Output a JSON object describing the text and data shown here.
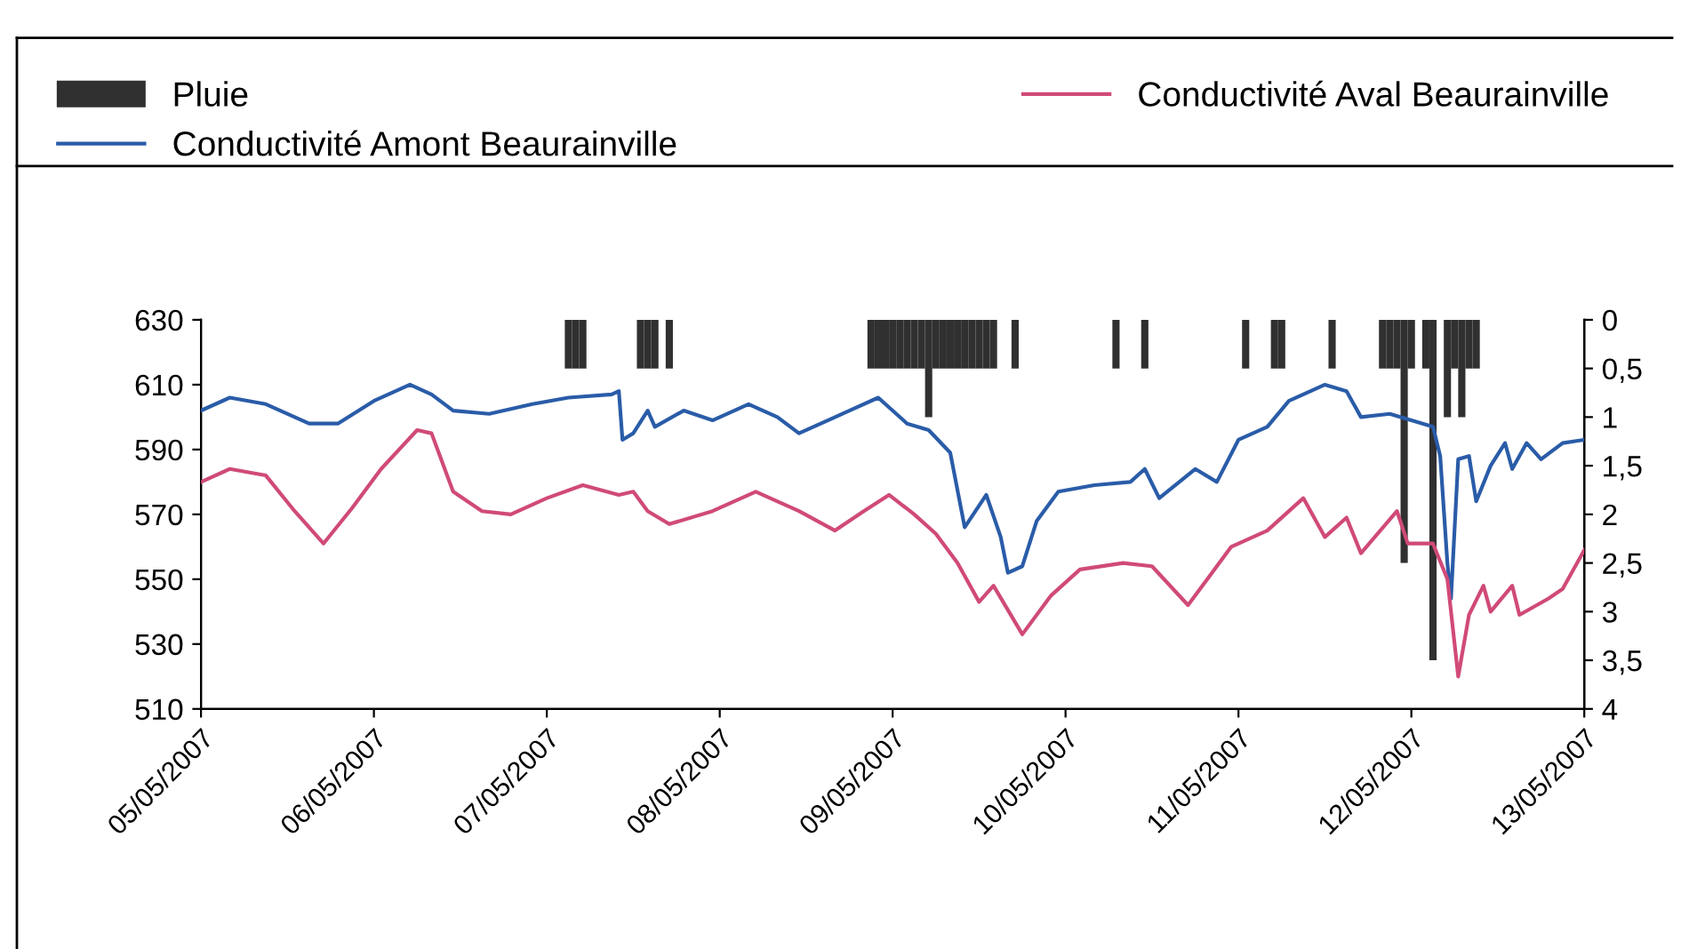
{
  "chart_data": {
    "type": "line",
    "legend": "top",
    "grid": false,
    "xlim": [
      "2007-05-05",
      "2007-05-13"
    ],
    "xticks": [
      {
        "value": "2007-05-05",
        "label": "05/05/2007"
      },
      {
        "value": "2007-05-06",
        "label": "06/05/2007"
      },
      {
        "value": "2007-05-07",
        "label": "07/05/2007"
      },
      {
        "value": "2007-05-08",
        "label": "08/05/2007"
      },
      {
        "value": "2007-05-09",
        "label": "09/05/2007"
      },
      {
        "value": "2007-05-10",
        "label": "10/05/2007"
      },
      {
        "value": "2007-05-11",
        "label": "11/05/2007"
      },
      {
        "value": "2007-05-12",
        "label": "12/05/2007"
      },
      {
        "value": "2007-05-13",
        "label": "13/05/2007"
      }
    ],
    "ylim": [
      510,
      630
    ],
    "yticks": [
      510,
      530,
      550,
      570,
      590,
      610,
      630
    ],
    "y2lim": [
      4,
      0
    ],
    "y2ticks": [
      0,
      {
        "value": 0.5,
        "label": "0,5"
      },
      1,
      {
        "value": 1.5,
        "label": "1,5"
      },
      2,
      {
        "value": 2.5,
        "label": "2,5"
      },
      3,
      {
        "value": 3.5,
        "label": "3,5"
      },
      4
    ],
    "series": [
      {
        "name": "Pluie",
        "type": "bar",
        "axis": "y2",
        "color": "#303030",
        "x": [
          "2007-05-07T03:00",
          "2007-05-07T04:00",
          "2007-05-07T05:00",
          "2007-05-07T13:00",
          "2007-05-07T14:00",
          "2007-05-07T15:00",
          "2007-05-07T17:00",
          "2007-05-08T21:00",
          "2007-05-08T22:00",
          "2007-05-08T23:00",
          "2007-05-09T00:00",
          "2007-05-09T01:00",
          "2007-05-09T02:00",
          "2007-05-09T03:00",
          "2007-05-09T04:00",
          "2007-05-09T05:00",
          "2007-05-09T06:00",
          "2007-05-09T07:00",
          "2007-05-09T08:00",
          "2007-05-09T09:00",
          "2007-05-09T10:00",
          "2007-05-09T11:00",
          "2007-05-09T12:00",
          "2007-05-09T13:00",
          "2007-05-09T14:00",
          "2007-05-09T17:00",
          "2007-05-10T07:00",
          "2007-05-10T11:00",
          "2007-05-11T01:00",
          "2007-05-11T05:00",
          "2007-05-11T06:00",
          "2007-05-11T13:00",
          "2007-05-11T20:00",
          "2007-05-11T21:00",
          "2007-05-11T22:00",
          "2007-05-11T23:00",
          "2007-05-12T00:00",
          "2007-05-12T02:00",
          "2007-05-12T03:00",
          "2007-05-12T05:00",
          "2007-05-12T06:00",
          "2007-05-12T07:00",
          "2007-05-12T08:00",
          "2007-05-12T09:00"
        ],
        "values": [
          0.5,
          0.5,
          0.5,
          0.5,
          0.5,
          0.5,
          0.5,
          0.5,
          0.5,
          0.5,
          0.5,
          0.5,
          0.5,
          0.5,
          0.5,
          1,
          0.5,
          0.5,
          0.5,
          0.5,
          0.5,
          0.5,
          0.5,
          0.5,
          0.5,
          0.5,
          0.5,
          0.5,
          0.5,
          0.5,
          0.5,
          0.5,
          0.5,
          0.5,
          0.5,
          2.5,
          0.5,
          0.5,
          3.5,
          1,
          0.5,
          1,
          0.5,
          0.5
        ]
      },
      {
        "name": "Conductivité Amont Beaurainville",
        "color": "#2a5ca8",
        "x": [
          "2007-05-05T00:00",
          "2007-05-05T04:00",
          "2007-05-05T09:00",
          "2007-05-05T15:00",
          "2007-05-05T19:00",
          "2007-05-06T00:00",
          "2007-05-06T05:00",
          "2007-05-06T08:00",
          "2007-05-06T11:00",
          "2007-05-06T16:00",
          "2007-05-06T22:00",
          "2007-05-07T03:00",
          "2007-05-07T09:00",
          "2007-05-07T10:00",
          "2007-05-07T10:30",
          "2007-05-07T12:00",
          "2007-05-07T14:00",
          "2007-05-07T15:00",
          "2007-05-07T19:00",
          "2007-05-07T23:00",
          "2007-05-08T04:00",
          "2007-05-08T08:00",
          "2007-05-08T11:00",
          "2007-05-08T15:00",
          "2007-05-08T18:00",
          "2007-05-08T22:00",
          "2007-05-09T02:00",
          "2007-05-09T05:00",
          "2007-05-09T08:00",
          "2007-05-09T10:00",
          "2007-05-09T13:00",
          "2007-05-09T15:00",
          "2007-05-09T16:00",
          "2007-05-09T18:00",
          "2007-05-09T20:00",
          "2007-05-09T23:00",
          "2007-05-10T04:00",
          "2007-05-10T09:00",
          "2007-05-10T11:00",
          "2007-05-10T13:00",
          "2007-05-10T18:00",
          "2007-05-10T21:00",
          "2007-05-11T00:00",
          "2007-05-11T04:00",
          "2007-05-11T07:00",
          "2007-05-11T12:00",
          "2007-05-11T15:00",
          "2007-05-11T17:00",
          "2007-05-11T21:00",
          "2007-05-12T03:00",
          "2007-05-12T04:00",
          "2007-05-12T05:00",
          "2007-05-12T05:30",
          "2007-05-12T06:30",
          "2007-05-12T08:00",
          "2007-05-12T09:00",
          "2007-05-12T11:00",
          "2007-05-12T13:00",
          "2007-05-12T14:00",
          "2007-05-12T16:00",
          "2007-05-12T18:00",
          "2007-05-12T21:00",
          "2007-05-13T00:00"
        ],
        "values": [
          602,
          606,
          604,
          598,
          598,
          605,
          610,
          607,
          602,
          601,
          604,
          606,
          607,
          608,
          593,
          595,
          602,
          597,
          602,
          599,
          604,
          600,
          595,
          599,
          602,
          606,
          598,
          596,
          589,
          566,
          576,
          563,
          552,
          554,
          568,
          577,
          579,
          580,
          584,
          575,
          584,
          580,
          593,
          597,
          605,
          610,
          608,
          600,
          601,
          597,
          588,
          555,
          544,
          587,
          588,
          574,
          585,
          592,
          584,
          592,
          587,
          592,
          593
        ]
      },
      {
        "name": "Conductivité Aval Beaurainville",
        "color": "#d04a78",
        "x": [
          "2007-05-05T00:00",
          "2007-05-05T04:00",
          "2007-05-05T09:00",
          "2007-05-05T13:00",
          "2007-05-05T17:00",
          "2007-05-05T21:00",
          "2007-05-06T01:00",
          "2007-05-06T06:00",
          "2007-05-06T08:00",
          "2007-05-06T11:00",
          "2007-05-06T15:00",
          "2007-05-06T19:00",
          "2007-05-07T00:00",
          "2007-05-07T05:00",
          "2007-05-07T10:00",
          "2007-05-07T12:00",
          "2007-05-07T14:00",
          "2007-05-07T17:00",
          "2007-05-07T23:00",
          "2007-05-08T05:00",
          "2007-05-08T11:00",
          "2007-05-08T16:00",
          "2007-05-08T20:00",
          "2007-05-08T23:30",
          "2007-05-09T03:00",
          "2007-05-09T06:00",
          "2007-05-09T09:00",
          "2007-05-09T12:00",
          "2007-05-09T14:00",
          "2007-05-09T18:00",
          "2007-05-09T22:00",
          "2007-05-10T02:00",
          "2007-05-10T08:00",
          "2007-05-10T12:00",
          "2007-05-10T17:00",
          "2007-05-10T20:00",
          "2007-05-10T23:00",
          "2007-05-11T04:00",
          "2007-05-11T09:00",
          "2007-05-11T12:00",
          "2007-05-11T15:00",
          "2007-05-11T17:00",
          "2007-05-11T22:00",
          "2007-05-11T23:30",
          "2007-05-12T03:00",
          "2007-05-12T05:00",
          "2007-05-12T06:30",
          "2007-05-12T08:00",
          "2007-05-12T10:00",
          "2007-05-12T11:00",
          "2007-05-12T14:00",
          "2007-05-12T15:00",
          "2007-05-12T19:00",
          "2007-05-12T21:00",
          "2007-05-13T00:00"
        ],
        "values": [
          580,
          584,
          582,
          571,
          561,
          572,
          584,
          596,
          595,
          577,
          571,
          570,
          575,
          579,
          576,
          577,
          571,
          567,
          571,
          577,
          571,
          565,
          571,
          576,
          570,
          564,
          555,
          543,
          548,
          533,
          545,
          553,
          555,
          554,
          542,
          551,
          560,
          565,
          575,
          563,
          569,
          558,
          571,
          561,
          561,
          550,
          520,
          539,
          548,
          540,
          548,
          539,
          544,
          547,
          559
        ]
      }
    ]
  }
}
